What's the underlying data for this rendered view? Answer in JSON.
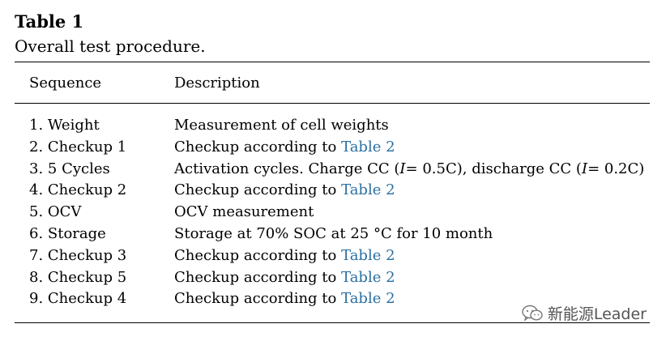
{
  "table": {
    "title": "Table 1",
    "caption": "Overall test procedure.",
    "headers": {
      "sequence": "Sequence",
      "description": "Description"
    },
    "rows": [
      {
        "sequence": "1. Weight",
        "description": [
          {
            "text": "Measurement of cell weights"
          }
        ]
      },
      {
        "sequence": "2. Checkup 1",
        "description": [
          {
            "text": "Checkup according to "
          },
          {
            "text": "Table 2",
            "ref": true
          }
        ]
      },
      {
        "sequence": "3. 5 Cycles",
        "description": [
          {
            "text": "Activation cycles. Charge CC ("
          },
          {
            "text": "I",
            "italic": true
          },
          {
            "text": "= 0.5C), discharge CC ("
          },
          {
            "text": "I",
            "italic": true
          },
          {
            "text": "= 0.2C)"
          }
        ]
      },
      {
        "sequence": "4. Checkup 2",
        "description": [
          {
            "text": "Checkup according to "
          },
          {
            "text": "Table 2",
            "ref": true
          }
        ]
      },
      {
        "sequence": "5. OCV",
        "description": [
          {
            "text": "OCV measurement"
          }
        ]
      },
      {
        "sequence": "6. Storage",
        "description": [
          {
            "text": "Storage at 70% SOC at 25 °C for 10 month"
          }
        ]
      },
      {
        "sequence": "7. Checkup 3",
        "description": [
          {
            "text": "Checkup according to "
          },
          {
            "text": "Table 2",
            "ref": true
          }
        ]
      },
      {
        "sequence": "8. Checkup 5",
        "description": [
          {
            "text": "Checkup according to "
          },
          {
            "text": "Table 2",
            "ref": true
          }
        ]
      },
      {
        "sequence": "9. Checkup 4",
        "description": [
          {
            "text": "Checkup according to "
          },
          {
            "text": "Table 2",
            "ref": true
          }
        ]
      }
    ]
  },
  "watermark": {
    "text": "新能源Leader",
    "icon": "wechat-icon"
  },
  "colors": {
    "link": "#2a6fa0",
    "text": "#000000",
    "watermark": "#555555"
  }
}
